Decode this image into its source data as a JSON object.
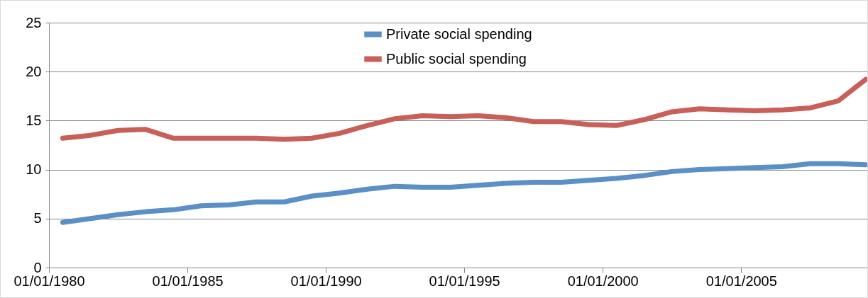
{
  "chart_data": {
    "type": "line",
    "x": [
      "1980-07-01",
      "1981-07-01",
      "1982-07-01",
      "1983-07-01",
      "1984-07-01",
      "1985-07-01",
      "1986-07-01",
      "1987-07-01",
      "1988-07-01",
      "1989-07-01",
      "1990-07-01",
      "1991-07-01",
      "1992-07-01",
      "1993-07-01",
      "1994-07-01",
      "1995-07-01",
      "1996-07-01",
      "1997-07-01",
      "1998-07-01",
      "1999-07-01",
      "2000-07-01",
      "2001-07-01",
      "2002-07-01",
      "2003-07-01",
      "2004-07-01",
      "2005-07-01",
      "2006-07-01",
      "2007-07-01",
      "2008-07-01",
      "2009-07-01"
    ],
    "series": [
      {
        "name": "Private social spending",
        "color": "#5b8fc8",
        "values": [
          4.6,
          5.0,
          5.4,
          5.7,
          5.9,
          6.3,
          6.4,
          6.7,
          6.7,
          7.3,
          7.6,
          8.0,
          8.3,
          8.2,
          8.2,
          8.4,
          8.6,
          8.7,
          8.7,
          8.9,
          9.1,
          9.4,
          9.8,
          10.0,
          10.1,
          10.2,
          10.3,
          10.6,
          10.6,
          10.5
        ]
      },
      {
        "name": "Public social spending",
        "color": "#c85f58",
        "values": [
          13.2,
          13.5,
          14.0,
          14.1,
          13.2,
          13.2,
          13.2,
          13.2,
          13.1,
          13.2,
          13.7,
          14.5,
          15.2,
          15.5,
          15.4,
          15.5,
          15.3,
          14.9,
          14.9,
          14.6,
          14.5,
          15.1,
          15.9,
          16.2,
          16.1,
          16.0,
          16.1,
          16.3,
          17.0,
          19.2
        ]
      }
    ],
    "xlim": [
      "1980-01-01",
      "2009-08-01"
    ],
    "xticks": [
      {
        "value": "1980-01-01",
        "label": "01/01/1980"
      },
      {
        "value": "1985-01-01",
        "label": "01/01/1985"
      },
      {
        "value": "1990-01-01",
        "label": "01/01/1990"
      },
      {
        "value": "1995-01-01",
        "label": "01/01/1995"
      },
      {
        "value": "2000-01-01",
        "label": "01/01/2000"
      },
      {
        "value": "2005-01-01",
        "label": "01/01/2005"
      }
    ],
    "ylim": [
      0,
      25
    ],
    "yticks": [
      0,
      5,
      10,
      15,
      20,
      25
    ],
    "grid": "y",
    "legend": "top",
    "marker": "none",
    "line_style": "solid"
  }
}
